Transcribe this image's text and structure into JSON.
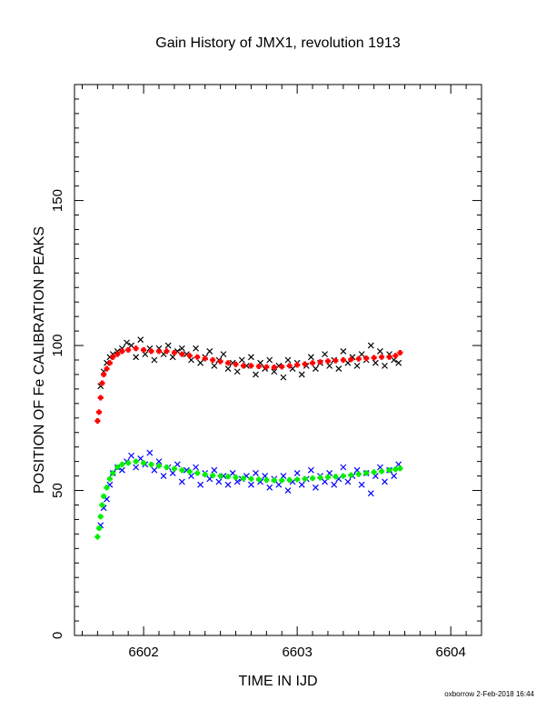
{
  "footer": "oxborrow  2-Feb-2018 16:44",
  "chart_data": {
    "type": "scatter",
    "title": "Gain History of JMX1, revolution 1913",
    "xlabel": "TIME IN IJD",
    "ylabel": "POSITION OF Fe CALIBRATION PEAKS",
    "xlim": [
      6601.55,
      6604.2
    ],
    "ylim": [
      0,
      190
    ],
    "xticks": [
      6602,
      6603,
      6604
    ],
    "yticks": [
      0,
      50,
      100,
      150
    ],
    "grid": false,
    "colors": {
      "upper_points": "#000000",
      "upper_fit": "#ff0000",
      "lower_points": "#0000ff",
      "lower_fit": "#00ee00"
    },
    "series": [
      {
        "marker": "x",
        "color": "#000000",
        "x": [
          6601.72,
          6601.74,
          6601.76,
          6601.78,
          6601.8,
          6601.83,
          6601.86,
          6601.89,
          6601.92,
          6601.95,
          6601.98,
          6602.01,
          6602.04,
          6602.07,
          6602.1,
          6602.13,
          6602.16,
          6602.19,
          6602.22,
          6602.25,
          6602.28,
          6602.31,
          6602.34,
          6602.37,
          6602.4,
          6602.43,
          6602.46,
          6602.49,
          6602.52,
          6602.55,
          6602.58,
          6602.61,
          6602.64,
          6602.67,
          6602.7,
          6602.73,
          6602.76,
          6602.79,
          6602.82,
          6602.85,
          6602.88,
          6602.91,
          6602.94,
          6602.97,
          6603.0,
          6603.03,
          6603.06,
          6603.09,
          6603.12,
          6603.15,
          6603.18,
          6603.21,
          6603.24,
          6603.27,
          6603.3,
          6603.33,
          6603.36,
          6603.39,
          6603.42,
          6603.45,
          6603.48,
          6603.51,
          6603.54,
          6603.57,
          6603.6,
          6603.63,
          6603.66
        ],
        "y": [
          86,
          91,
          94,
          96,
          97,
          98,
          99,
          101,
          100,
          96,
          102,
          97,
          99,
          95,
          99,
          97,
          100,
          96,
          98,
          99,
          97,
          95,
          99,
          94,
          96,
          98,
          93,
          95,
          97,
          92,
          94,
          91,
          95,
          93,
          96,
          90,
          94,
          92,
          95,
          91,
          93,
          89,
          95,
          92,
          94,
          90,
          93,
          96,
          92,
          94,
          97,
          93,
          95,
          92,
          98,
          94,
          96,
          93,
          97,
          95,
          100,
          94,
          98,
          93,
          97,
          95,
          94
        ]
      },
      {
        "marker": "+",
        "color": "#ff0000",
        "x": [
          6601.7,
          6601.71,
          6601.72,
          6601.73,
          6601.74,
          6601.76,
          6601.78,
          6601.8,
          6601.83,
          6601.86,
          6601.9,
          6601.95,
          6602.0,
          6602.05,
          6602.1,
          6602.15,
          6602.2,
          6602.25,
          6602.3,
          6602.35,
          6602.4,
          6602.45,
          6602.5,
          6602.55,
          6602.6,
          6602.65,
          6602.7,
          6602.75,
          6602.8,
          6602.85,
          6602.9,
          6602.95,
          6603.0,
          6603.05,
          6603.1,
          6603.15,
          6603.2,
          6603.25,
          6603.3,
          6603.35,
          6603.4,
          6603.45,
          6603.5,
          6603.55,
          6603.6,
          6603.64,
          6603.67
        ],
        "y": [
          74,
          77,
          82,
          87,
          90,
          92,
          94,
          96,
          97,
          98,
          98.5,
          99,
          98.5,
          98,
          98,
          98,
          97.5,
          97,
          96.5,
          96,
          95.5,
          95,
          94.5,
          94,
          93.5,
          93,
          93,
          92.8,
          92.6,
          92.5,
          92.7,
          93,
          93.3,
          93.6,
          94,
          94.3,
          94.6,
          94.8,
          95,
          95.2,
          95.4,
          95.6,
          95.8,
          96,
          96,
          96.5,
          97.5
        ]
      },
      {
        "marker": "x",
        "color": "#0000ff",
        "x": [
          6601.72,
          6601.74,
          6601.76,
          6601.78,
          6601.8,
          6601.83,
          6601.86,
          6601.89,
          6601.92,
          6601.95,
          6601.98,
          6602.01,
          6602.04,
          6602.07,
          6602.1,
          6602.13,
          6602.16,
          6602.19,
          6602.22,
          6602.25,
          6602.28,
          6602.31,
          6602.34,
          6602.37,
          6602.4,
          6602.43,
          6602.46,
          6602.49,
          6602.52,
          6602.55,
          6602.58,
          6602.61,
          6602.64,
          6602.67,
          6602.7,
          6602.73,
          6602.76,
          6602.79,
          6602.82,
          6602.85,
          6602.88,
          6602.91,
          6602.94,
          6602.97,
          6603.0,
          6603.03,
          6603.06,
          6603.09,
          6603.12,
          6603.15,
          6603.18,
          6603.21,
          6603.24,
          6603.27,
          6603.3,
          6603.33,
          6603.36,
          6603.39,
          6603.42,
          6603.45,
          6603.48,
          6603.51,
          6603.54,
          6603.57,
          6603.6,
          6603.63,
          6603.66
        ],
        "y": [
          38,
          44,
          47,
          52,
          56,
          58,
          57,
          60,
          62,
          58,
          61,
          59,
          63,
          57,
          60,
          55,
          58,
          56,
          59,
          53,
          57,
          55,
          58,
          52,
          56,
          54,
          57,
          53,
          55,
          52,
          56,
          53,
          54,
          55,
          52,
          56,
          53,
          55,
          51,
          54,
          52,
          55,
          50,
          53,
          56,
          52,
          54,
          57,
          51,
          55,
          53,
          56,
          52,
          54,
          58,
          53,
          55,
          57,
          52,
          56,
          49,
          55,
          58,
          53,
          57,
          55,
          59
        ]
      },
      {
        "marker": "+",
        "color": "#00ee00",
        "x": [
          6601.7,
          6601.71,
          6601.72,
          6601.73,
          6601.74,
          6601.76,
          6601.78,
          6601.8,
          6601.83,
          6601.86,
          6601.9,
          6601.95,
          6602.0,
          6602.05,
          6602.1,
          6602.15,
          6602.2,
          6602.25,
          6602.3,
          6602.35,
          6602.4,
          6602.45,
          6602.5,
          6602.55,
          6602.6,
          6602.65,
          6602.7,
          6602.75,
          6602.8,
          6602.85,
          6602.9,
          6602.95,
          6603.0,
          6603.05,
          6603.1,
          6603.15,
          6603.2,
          6603.25,
          6603.3,
          6603.35,
          6603.4,
          6603.45,
          6603.5,
          6603.55,
          6603.6,
          6603.64,
          6603.67
        ],
        "y": [
          34,
          37,
          41,
          45,
          48,
          51,
          54,
          56,
          58,
          59,
          59.5,
          60,
          59.5,
          59,
          58.5,
          58,
          57.5,
          57,
          56.5,
          56,
          55.5,
          55.2,
          55,
          54.8,
          54.5,
          54.2,
          54,
          53.8,
          53.6,
          53.5,
          53.5,
          53.6,
          53.8,
          54,
          54.2,
          54.4,
          54.6,
          54.8,
          55,
          55.3,
          55.6,
          56,
          56.3,
          56.6,
          57,
          57.3,
          57.6
        ]
      }
    ]
  }
}
